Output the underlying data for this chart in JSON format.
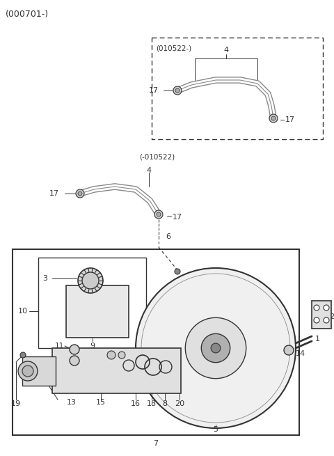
{
  "title": "(000701-)",
  "bg_color": "#ffffff",
  "lc": "#333333",
  "pc": "#888888",
  "fig_w": 4.8,
  "fig_h": 6.55,
  "dpi": 100
}
